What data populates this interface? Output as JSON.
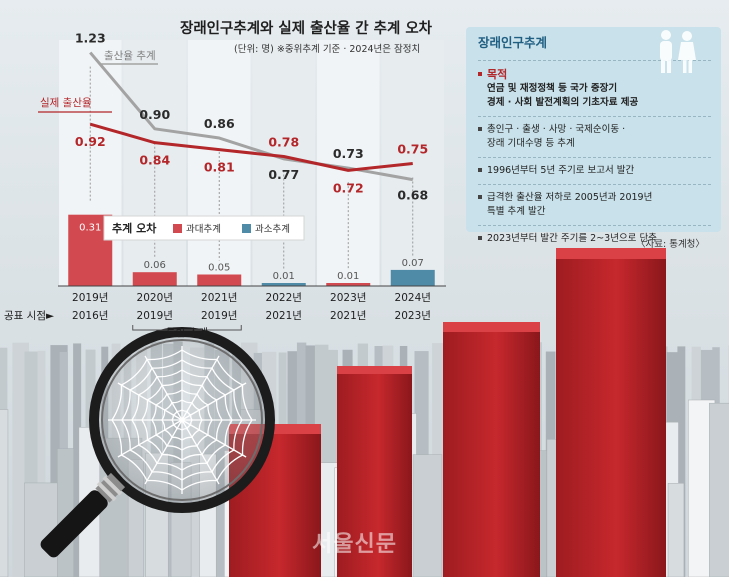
{
  "chart_data": {
    "type": "line",
    "title": "장래인구추계와 실제 출산율 간 추계 오차",
    "unit_note": "(단위: 명) ※중위추계 기준 · 2024년은 잠정치",
    "categories": [
      "2019년",
      "2020년",
      "2021년",
      "2022년",
      "2023년",
      "2024년"
    ],
    "publication_label": "공표 시점►",
    "publication_years": [
      "2016년",
      "2019년",
      "2019년",
      "2021년",
      "2021년",
      "2023년"
    ],
    "special_note": "특별 추계",
    "special_span": [
      1,
      2
    ],
    "series": [
      {
        "name": "출산율 추계",
        "color": "#a3a3a3",
        "values": [
          1.23,
          0.9,
          0.86,
          0.77,
          0.73,
          0.68
        ]
      },
      {
        "name": "실제 출산율",
        "color": "#b3262a",
        "values": [
          0.92,
          0.84,
          0.81,
          0.78,
          0.72,
          0.75
        ]
      }
    ],
    "value_labels": {
      "forecast": [
        "1.23",
        "0.90",
        "0.86",
        "0.77",
        "0.73",
        "0.68"
      ],
      "actual": [
        "0.92",
        "0.84",
        "0.81",
        "0.78",
        "0.72",
        "0.75"
      ]
    },
    "error_bars": {
      "title": "추계 오차",
      "legend": [
        {
          "name": "과대추계",
          "color": "#d2494f"
        },
        {
          "name": "과소추계",
          "color": "#4f8ba6"
        }
      ],
      "values": [
        0.31,
        0.06,
        0.05,
        0.01,
        0.01,
        0.07
      ],
      "labels": [
        "0.31",
        "0.06",
        "0.05",
        "0.01",
        "0.01",
        "0.07"
      ],
      "kinds": [
        "과대추계",
        "과대추계",
        "과대추계",
        "과소추계",
        "과대추계",
        "과소추계"
      ]
    }
  },
  "info_panel": {
    "title": "장래인구추계",
    "purpose_head": "목적",
    "purpose_lines": [
      "연금 및 재정정책 등 국가 중장기",
      "경제 · 사회 발전계획의 기초자료 제공"
    ],
    "items": [
      [
        "총인구 · 출생 · 사망 · 국제순이동 ·",
        "장래 기대수명 등 추계"
      ],
      [
        "1996년부터 5년 주기로 보고서 발간"
      ],
      [
        "급격한 출산율 저하로 2005년과 2019년",
        "특별 추계 발간"
      ],
      [
        "2023년부터 발간 주기를 2~3년으로 단축"
      ]
    ]
  },
  "source": "〈자료: 통계청〉",
  "watermark": "서울신문"
}
